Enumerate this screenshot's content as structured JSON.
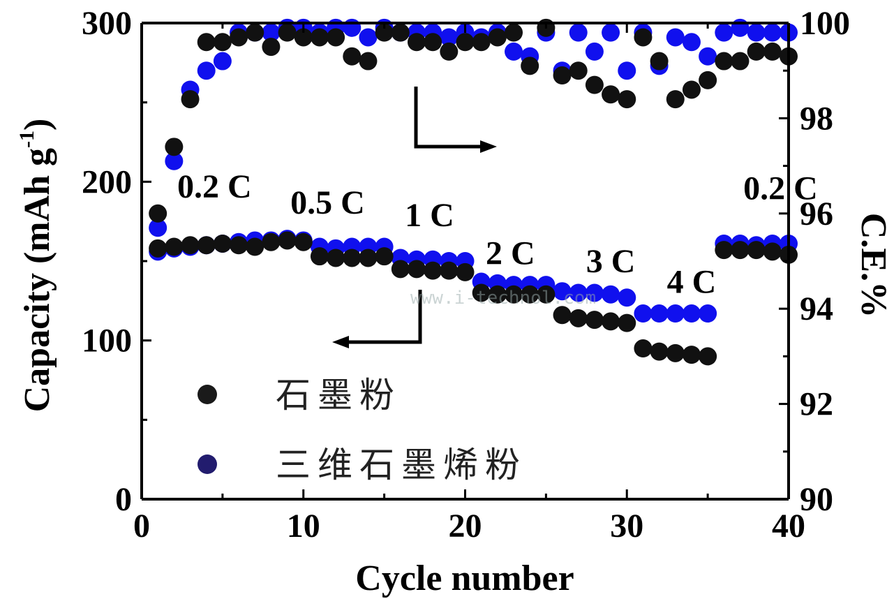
{
  "chart_data": {
    "type": "scatter",
    "xlabel": "Cycle number",
    "ylabel_left": "Capacity (mAh g-1)",
    "ylabel_right": "C.E.%",
    "xlim": [
      0,
      40
    ],
    "ylim_left": [
      0,
      300
    ],
    "ylim_right": [
      90,
      100
    ],
    "x_ticks": [
      0,
      10,
      20,
      30,
      40
    ],
    "y_left_ticks": [
      0,
      100,
      200,
      300
    ],
    "y_right_ticks": [
      90,
      92,
      94,
      96,
      98,
      100
    ],
    "rate_labels": [
      {
        "text": "0.2 C",
        "cycle": 4.5,
        "capacity": 190
      },
      {
        "text": "0.5 C",
        "cycle": 11.5,
        "capacity": 180
      },
      {
        "text": "1 C",
        "cycle": 17.8,
        "capacity": 172
      },
      {
        "text": "2 C",
        "cycle": 22.8,
        "capacity": 148
      },
      {
        "text": "3 C",
        "cycle": 29.0,
        "capacity": 143
      },
      {
        "text": "4 C",
        "cycle": 34.0,
        "capacity": 130
      },
      {
        "text": "0.2 C",
        "cycle": 39.5,
        "capacity": 189
      }
    ],
    "legend": [
      {
        "label": "石墨粉",
        "color": "#1a1a1a"
      },
      {
        "label": "三维石墨烯粉",
        "color": "#221c6e"
      }
    ],
    "watermark": "www.i-technol.com",
    "series": [
      {
        "name": "石墨粉",
        "axis": "left",
        "color": "#111111",
        "x": [
          1,
          2,
          3,
          4,
          5,
          6,
          7,
          8,
          9,
          10,
          11,
          12,
          13,
          14,
          15,
          16,
          17,
          18,
          19,
          20,
          21,
          22,
          23,
          24,
          25,
          26,
          27,
          28,
          29,
          30,
          31,
          32,
          33,
          34,
          35,
          36,
          37,
          38,
          39,
          40
        ],
        "y": [
          158,
          159,
          160,
          160,
          161,
          160,
          159,
          162,
          163,
          162,
          153,
          152,
          152,
          152,
          153,
          145,
          145,
          144,
          144,
          143,
          130,
          129,
          129,
          129,
          129,
          116,
          114,
          113,
          112,
          111,
          95,
          93,
          92,
          91,
          90,
          157,
          157,
          157,
          156,
          154
        ]
      },
      {
        "name": "三维石墨烯粉",
        "axis": "left",
        "color": "#1010ee",
        "x": [
          1,
          2,
          3,
          4,
          5,
          6,
          7,
          8,
          9,
          10,
          11,
          12,
          13,
          14,
          15,
          16,
          17,
          18,
          19,
          20,
          21,
          22,
          23,
          24,
          25,
          26,
          27,
          28,
          29,
          30,
          31,
          32,
          33,
          34,
          35,
          36,
          37,
          38,
          39,
          40
        ],
        "y": [
          156,
          158,
          159,
          160,
          161,
          162,
          163,
          163,
          164,
          163,
          159,
          158,
          159,
          159,
          159,
          152,
          151,
          151,
          150,
          150,
          137,
          136,
          135,
          135,
          135,
          131,
          130,
          130,
          129,
          127,
          117,
          117,
          117,
          117,
          117,
          161,
          161,
          160,
          161,
          161
        ]
      },
      {
        "name": "石墨粉",
        "axis": "right",
        "color": "#111111",
        "x": [
          1,
          2,
          3,
          4,
          5,
          6,
          7,
          8,
          9,
          10,
          11,
          12,
          13,
          14,
          15,
          16,
          17,
          18,
          19,
          20,
          21,
          22,
          23,
          24,
          25,
          26,
          27,
          28,
          29,
          30,
          31,
          32,
          33,
          34,
          35,
          36,
          37,
          38,
          39,
          40
        ],
        "y": [
          96.0,
          97.4,
          98.4,
          99.6,
          99.6,
          99.7,
          99.8,
          99.5,
          99.8,
          99.7,
          99.7,
          99.7,
          99.3,
          99.2,
          99.8,
          99.8,
          99.6,
          99.6,
          99.4,
          99.6,
          99.6,
          99.7,
          99.8,
          99.1,
          99.9,
          98.9,
          99.0,
          98.7,
          98.5,
          98.4,
          99.7,
          99.2,
          98.4,
          98.6,
          98.8,
          99.2,
          99.2,
          99.4,
          99.4,
          99.3
        ]
      },
      {
        "name": "三维石墨烯粉",
        "axis": "right",
        "color": "#1010ee",
        "x": [
          1,
          2,
          3,
          4,
          5,
          6,
          7,
          8,
          9,
          10,
          11,
          12,
          13,
          14,
          15,
          16,
          17,
          18,
          19,
          20,
          21,
          22,
          23,
          24,
          25,
          26,
          27,
          28,
          29,
          30,
          31,
          32,
          33,
          34,
          35,
          36,
          37,
          38,
          39,
          40
        ],
        "y": [
          95.7,
          97.1,
          98.6,
          99.0,
          99.2,
          99.8,
          99.8,
          99.8,
          99.9,
          99.9,
          99.8,
          99.9,
          99.9,
          99.7,
          99.9,
          99.8,
          99.8,
          99.8,
          99.7,
          99.8,
          99.7,
          99.8,
          99.4,
          99.3,
          99.8,
          99.0,
          99.8,
          99.4,
          99.8,
          99.0,
          99.8,
          99.1,
          99.7,
          99.6,
          99.3,
          99.8,
          99.9,
          99.8,
          99.8,
          99.8
        ]
      }
    ]
  }
}
